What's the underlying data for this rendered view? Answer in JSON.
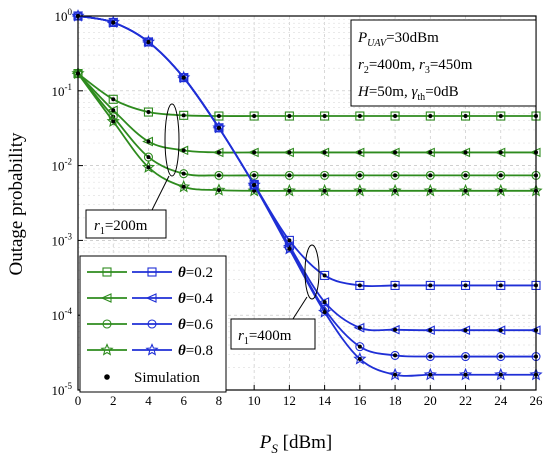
{
  "chart_data": {
    "type": "line",
    "xlabel_main": "P",
    "xlabel_sub": "S",
    "xlabel_unit": " [dBm]",
    "ylabel": "Outage probability",
    "xlim": [
      0,
      26
    ],
    "ylim_log10": [
      -5,
      0
    ],
    "y_scale": "log",
    "grid": true,
    "x_ticks": [
      "0",
      "2",
      "4",
      "6",
      "8",
      "10",
      "12",
      "14",
      "16",
      "18",
      "20",
      "22",
      "24",
      "26"
    ],
    "y_ticks": [
      {
        "base": "10",
        "exp": "0",
        "value": 1
      },
      {
        "base": "10",
        "exp": "-1",
        "value": 0.1
      },
      {
        "base": "10",
        "exp": "-2",
        "value": 0.01
      },
      {
        "base": "10",
        "exp": "-3",
        "value": 0.001
      },
      {
        "base": "10",
        "exp": "-4",
        "value": 0.0001
      },
      {
        "base": "10",
        "exp": "-5",
        "value": 1e-05
      }
    ],
    "x": [
      0,
      2,
      4,
      6,
      8,
      10,
      12,
      14,
      16,
      18,
      20,
      22,
      24,
      26
    ],
    "colors": {
      "r1_200": "#2e8b1e",
      "r1_400": "#1f2fd6",
      "sim": "#000000"
    },
    "series": [
      {
        "group": "r1_200",
        "theta": "0.2",
        "marker": "square",
        "values": [
          0.17,
          0.077,
          0.052,
          0.047,
          0.046,
          0.046,
          0.046,
          0.046,
          0.046,
          0.046,
          0.046,
          0.046,
          0.046,
          0.046
        ]
      },
      {
        "group": "r1_200",
        "theta": "0.4",
        "marker": "triangle",
        "values": [
          0.17,
          0.055,
          0.021,
          0.016,
          0.015,
          0.015,
          0.015,
          0.015,
          0.015,
          0.015,
          0.015,
          0.015,
          0.015,
          0.015
        ]
      },
      {
        "group": "r1_200",
        "theta": "0.6",
        "marker": "circle",
        "values": [
          0.17,
          0.045,
          0.013,
          0.0078,
          0.0074,
          0.0074,
          0.0074,
          0.0074,
          0.0074,
          0.0074,
          0.0074,
          0.0074,
          0.0074,
          0.0074
        ]
      },
      {
        "group": "r1_200",
        "theta": "0.8",
        "marker": "star",
        "values": [
          0.17,
          0.039,
          0.0095,
          0.0052,
          0.0047,
          0.0046,
          0.0046,
          0.0046,
          0.0046,
          0.0046,
          0.0046,
          0.0046,
          0.0046,
          0.0046
        ]
      },
      {
        "group": "r1_400",
        "theta": "0.2",
        "marker": "square",
        "values": [
          1.0,
          0.82,
          0.45,
          0.15,
          0.032,
          0.0056,
          0.001,
          0.00034,
          0.00025,
          0.00025,
          0.00025,
          0.00025,
          0.00025,
          0.00025
        ]
      },
      {
        "group": "r1_400",
        "theta": "0.4",
        "marker": "triangle",
        "values": [
          1.0,
          0.82,
          0.45,
          0.15,
          0.032,
          0.0055,
          0.00085,
          0.00015,
          6.8e-05,
          6.4e-05,
          6.3e-05,
          6.3e-05,
          6.3e-05,
          6.3e-05
        ]
      },
      {
        "group": "r1_400",
        "theta": "0.6",
        "marker": "circle",
        "values": [
          1.0,
          0.82,
          0.45,
          0.15,
          0.032,
          0.0055,
          0.0008,
          0.00012,
          3.8e-05,
          2.9e-05,
          2.8e-05,
          2.8e-05,
          2.8e-05,
          2.8e-05
        ]
      },
      {
        "group": "r1_400",
        "theta": "0.8",
        "marker": "star",
        "values": [
          1.0,
          0.82,
          0.45,
          0.15,
          0.032,
          0.0055,
          0.00077,
          0.00011,
          2.6e-05,
          1.6e-05,
          1.6e-05,
          1.6e-05,
          1.6e-05,
          1.6e-05
        ]
      }
    ],
    "legend": {
      "placement": "bottom-left",
      "theta_prefix": "θ",
      "entries": [
        {
          "theta": "=0.2",
          "marker": "square"
        },
        {
          "theta": "=0.4",
          "marker": "triangle"
        },
        {
          "theta": "=0.6",
          "marker": "circle"
        },
        {
          "theta": "=0.8",
          "marker": "star"
        }
      ],
      "simulation_label": "Simulation"
    },
    "param_box": {
      "line1": {
        "p": "P",
        "sub": "UAV",
        "rest": "=30dBm"
      },
      "line2": {
        "r": "r",
        "sub2": "2",
        "mid": "=400m, ",
        "r3": "r",
        "sub3": "3",
        "rest": "=450m"
      },
      "line3": {
        "h": "H",
        "h_rest": "=50m, ",
        "gamma": "γ",
        "gsub": "th",
        "rest": "=0dB"
      }
    },
    "annotations": [
      {
        "r": "r",
        "sub": "1",
        "rest": "=200m"
      },
      {
        "r": "r",
        "sub": "1",
        "rest": "=400m"
      }
    ]
  }
}
